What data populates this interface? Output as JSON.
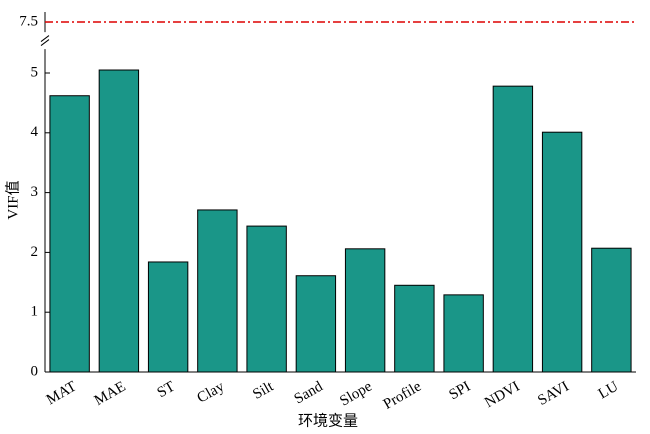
{
  "chart_data": {
    "type": "bar",
    "categories": [
      "MAT",
      "MAE",
      "ST",
      "Clay",
      "Silt",
      "Sand",
      "Slope",
      "Profile",
      "SPI",
      "NDVI",
      "SAVI",
      "LU"
    ],
    "values": [
      4.62,
      5.05,
      1.84,
      2.71,
      2.44,
      1.61,
      2.06,
      1.45,
      1.29,
      4.78,
      4.01,
      2.07
    ],
    "color": "#1a9688",
    "x_label": "环境变量",
    "y_label": "VIF值",
    "ylim": [
      0,
      7.6
    ],
    "y_break": [
      5.4,
      7.4
    ],
    "yticks": [
      0,
      1,
      2,
      3,
      4,
      5,
      7.5
    ],
    "hline": {
      "value": 7.5,
      "color": "#dd0000"
    }
  }
}
